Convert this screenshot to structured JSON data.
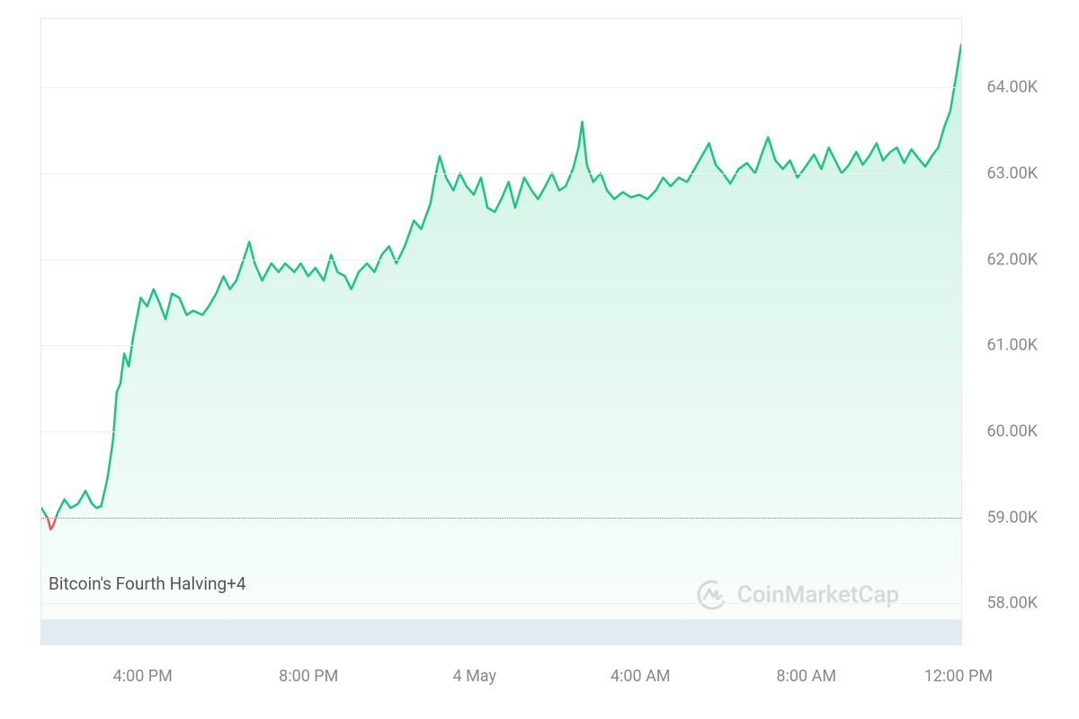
{
  "chart": {
    "type": "area",
    "line_color": "#18c683",
    "line_width": 2.5,
    "fill_gradient_top": "rgba(24,198,131,0.22)",
    "fill_gradient_bottom": "rgba(24,198,131,0.02)",
    "below_ref_color": "#f05359",
    "background_color": "#ffffff",
    "grid_color": "#f0f0f0",
    "dotted_ref_color": "#888888",
    "axis_label_color": "#888888",
    "axis_fontsize": 18,
    "annotation_fontsize": 19,
    "annotation_color": "#555555",
    "y_min": 57.5,
    "y_max": 64.8,
    "reference_value": 59.0,
    "y_ticks": [
      {
        "value": 58.0,
        "label": "58.00K"
      },
      {
        "value": 59.0,
        "label": "59.00K"
      },
      {
        "value": 60.0,
        "label": "60.00K"
      },
      {
        "value": 61.0,
        "label": "61.00K"
      },
      {
        "value": 62.0,
        "label": "62.00K"
      },
      {
        "value": 63.0,
        "label": "63.00K"
      },
      {
        "value": 64.0,
        "label": "64.00K"
      }
    ],
    "x_ticks": [
      {
        "pos": 0.11,
        "label": "4:00 PM"
      },
      {
        "pos": 0.29,
        "label": "8:00 PM"
      },
      {
        "pos": 0.47,
        "label": "4 May"
      },
      {
        "pos": 0.65,
        "label": "4:00 AM"
      },
      {
        "pos": 0.83,
        "label": "8:00 AM"
      },
      {
        "pos": 0.995,
        "label": "12:00 PM"
      }
    ],
    "annotation_text": "Bitcoin's Fourth Halving+4",
    "annotation_y_value": 58.35,
    "series": [
      {
        "x": 0.0,
        "y": 59.1
      },
      {
        "x": 0.007,
        "y": 58.98
      },
      {
        "x": 0.01,
        "y": 58.85
      },
      {
        "x": 0.013,
        "y": 58.9
      },
      {
        "x": 0.018,
        "y": 59.05
      },
      {
        "x": 0.025,
        "y": 59.2
      },
      {
        "x": 0.032,
        "y": 59.1
      },
      {
        "x": 0.04,
        "y": 59.15
      },
      {
        "x": 0.048,
        "y": 59.3
      },
      {
        "x": 0.055,
        "y": 59.15
      },
      {
        "x": 0.06,
        "y": 59.1
      },
      {
        "x": 0.065,
        "y": 59.12
      },
      {
        "x": 0.072,
        "y": 59.45
      },
      {
        "x": 0.078,
        "y": 59.9
      },
      {
        "x": 0.082,
        "y": 60.45
      },
      {
        "x": 0.086,
        "y": 60.55
      },
      {
        "x": 0.09,
        "y": 60.9
      },
      {
        "x": 0.095,
        "y": 60.75
      },
      {
        "x": 0.1,
        "y": 61.1
      },
      {
        "x": 0.108,
        "y": 61.55
      },
      {
        "x": 0.115,
        "y": 61.45
      },
      {
        "x": 0.122,
        "y": 61.65
      },
      {
        "x": 0.128,
        "y": 61.5
      },
      {
        "x": 0.135,
        "y": 61.3
      },
      {
        "x": 0.142,
        "y": 61.6
      },
      {
        "x": 0.15,
        "y": 61.55
      },
      {
        "x": 0.158,
        "y": 61.35
      },
      {
        "x": 0.165,
        "y": 61.4
      },
      {
        "x": 0.175,
        "y": 61.35
      },
      {
        "x": 0.182,
        "y": 61.45
      },
      {
        "x": 0.19,
        "y": 61.6
      },
      {
        "x": 0.198,
        "y": 61.8
      },
      {
        "x": 0.205,
        "y": 61.65
      },
      {
        "x": 0.212,
        "y": 61.75
      },
      {
        "x": 0.22,
        "y": 62.0
      },
      {
        "x": 0.226,
        "y": 62.2
      },
      {
        "x": 0.232,
        "y": 61.95
      },
      {
        "x": 0.24,
        "y": 61.75
      },
      {
        "x": 0.25,
        "y": 61.95
      },
      {
        "x": 0.258,
        "y": 61.85
      },
      {
        "x": 0.265,
        "y": 61.95
      },
      {
        "x": 0.275,
        "y": 61.85
      },
      {
        "x": 0.282,
        "y": 61.95
      },
      {
        "x": 0.29,
        "y": 61.8
      },
      {
        "x": 0.298,
        "y": 61.9
      },
      {
        "x": 0.307,
        "y": 61.75
      },
      {
        "x": 0.315,
        "y": 62.05
      },
      {
        "x": 0.322,
        "y": 61.85
      },
      {
        "x": 0.33,
        "y": 61.8
      },
      {
        "x": 0.337,
        "y": 61.65
      },
      {
        "x": 0.345,
        "y": 61.85
      },
      {
        "x": 0.354,
        "y": 61.95
      },
      {
        "x": 0.362,
        "y": 61.85
      },
      {
        "x": 0.37,
        "y": 62.05
      },
      {
        "x": 0.378,
        "y": 62.15
      },
      {
        "x": 0.386,
        "y": 61.95
      },
      {
        "x": 0.395,
        "y": 62.15
      },
      {
        "x": 0.405,
        "y": 62.45
      },
      {
        "x": 0.413,
        "y": 62.35
      },
      {
        "x": 0.423,
        "y": 62.65
      },
      {
        "x": 0.428,
        "y": 62.95
      },
      {
        "x": 0.433,
        "y": 63.2
      },
      {
        "x": 0.44,
        "y": 62.95
      },
      {
        "x": 0.448,
        "y": 62.8
      },
      {
        "x": 0.455,
        "y": 63.0
      },
      {
        "x": 0.462,
        "y": 62.85
      },
      {
        "x": 0.47,
        "y": 62.75
      },
      {
        "x": 0.478,
        "y": 62.95
      },
      {
        "x": 0.485,
        "y": 62.6
      },
      {
        "x": 0.493,
        "y": 62.55
      },
      {
        "x": 0.5,
        "y": 62.7
      },
      {
        "x": 0.508,
        "y": 62.9
      },
      {
        "x": 0.515,
        "y": 62.6
      },
      {
        "x": 0.525,
        "y": 62.95
      },
      {
        "x": 0.533,
        "y": 62.8
      },
      {
        "x": 0.54,
        "y": 62.7
      },
      {
        "x": 0.548,
        "y": 62.85
      },
      {
        "x": 0.555,
        "y": 63.0
      },
      {
        "x": 0.563,
        "y": 62.8
      },
      {
        "x": 0.57,
        "y": 62.85
      },
      {
        "x": 0.578,
        "y": 63.05
      },
      {
        "x": 0.584,
        "y": 63.3
      },
      {
        "x": 0.588,
        "y": 63.6
      },
      {
        "x": 0.593,
        "y": 63.1
      },
      {
        "x": 0.6,
        "y": 62.9
      },
      {
        "x": 0.608,
        "y": 63.0
      },
      {
        "x": 0.615,
        "y": 62.8
      },
      {
        "x": 0.623,
        "y": 62.7
      },
      {
        "x": 0.632,
        "y": 62.78
      },
      {
        "x": 0.641,
        "y": 62.72
      },
      {
        "x": 0.65,
        "y": 62.75
      },
      {
        "x": 0.659,
        "y": 62.7
      },
      {
        "x": 0.668,
        "y": 62.8
      },
      {
        "x": 0.676,
        "y": 62.95
      },
      {
        "x": 0.684,
        "y": 62.85
      },
      {
        "x": 0.693,
        "y": 62.95
      },
      {
        "x": 0.702,
        "y": 62.9
      },
      {
        "x": 0.71,
        "y": 63.05
      },
      {
        "x": 0.718,
        "y": 63.2
      },
      {
        "x": 0.726,
        "y": 63.35
      },
      {
        "x": 0.733,
        "y": 63.1
      },
      {
        "x": 0.741,
        "y": 63.0
      },
      {
        "x": 0.749,
        "y": 62.88
      },
      {
        "x": 0.758,
        "y": 63.05
      },
      {
        "x": 0.767,
        "y": 63.12
      },
      {
        "x": 0.776,
        "y": 63.0
      },
      {
        "x": 0.784,
        "y": 63.25
      },
      {
        "x": 0.79,
        "y": 63.42
      },
      {
        "x": 0.798,
        "y": 63.15
      },
      {
        "x": 0.806,
        "y": 63.05
      },
      {
        "x": 0.814,
        "y": 63.15
      },
      {
        "x": 0.822,
        "y": 62.95
      },
      {
        "x": 0.831,
        "y": 63.08
      },
      {
        "x": 0.84,
        "y": 63.22
      },
      {
        "x": 0.848,
        "y": 63.05
      },
      {
        "x": 0.856,
        "y": 63.3
      },
      {
        "x": 0.863,
        "y": 63.15
      },
      {
        "x": 0.87,
        "y": 63.0
      },
      {
        "x": 0.878,
        "y": 63.1
      },
      {
        "x": 0.886,
        "y": 63.25
      },
      {
        "x": 0.893,
        "y": 63.1
      },
      {
        "x": 0.9,
        "y": 63.2
      },
      {
        "x": 0.908,
        "y": 63.35
      },
      {
        "x": 0.915,
        "y": 63.15
      },
      {
        "x": 0.923,
        "y": 63.25
      },
      {
        "x": 0.93,
        "y": 63.3
      },
      {
        "x": 0.938,
        "y": 63.12
      },
      {
        "x": 0.946,
        "y": 63.28
      },
      {
        "x": 0.953,
        "y": 63.18
      },
      {
        "x": 0.961,
        "y": 63.08
      },
      {
        "x": 0.968,
        "y": 63.2
      },
      {
        "x": 0.975,
        "y": 63.3
      },
      {
        "x": 0.982,
        "y": 63.55
      },
      {
        "x": 0.988,
        "y": 63.72
      },
      {
        "x": 0.994,
        "y": 64.1
      },
      {
        "x": 1.0,
        "y": 64.5
      }
    ],
    "volume_area": {
      "top_y_value": 57.8,
      "bottom_y_value": 57.5,
      "color": "#e6edf3"
    }
  },
  "watermark": {
    "text": "CoinMarketCap",
    "logo_color": "#999999",
    "fontsize": 26,
    "opacity": 0.35,
    "position_x": 0.71,
    "position_y_value": 58.1
  }
}
